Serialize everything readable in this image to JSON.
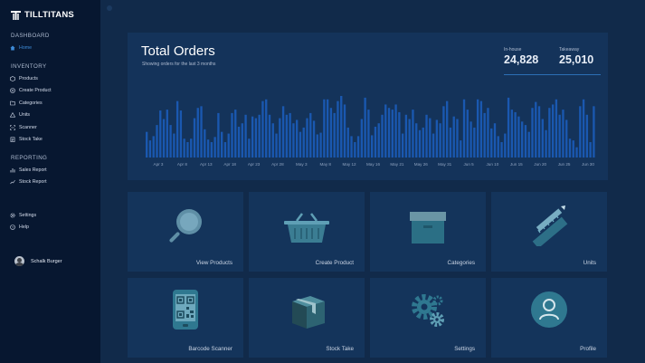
{
  "brand": {
    "name": "TILLTITANS"
  },
  "sidebar": {
    "dashboard_heading": "DASHBOARD",
    "home": "Home",
    "inventory_heading": "INVENTORY",
    "inventory_items": [
      {
        "label": "Products",
        "icon": "box-icon"
      },
      {
        "label": "Create Product",
        "icon": "plus-circle-icon"
      },
      {
        "label": "Categories",
        "icon": "folder-icon"
      },
      {
        "label": "Units",
        "icon": "triangle-ruler-icon"
      },
      {
        "label": "Scanner",
        "icon": "scan-icon"
      },
      {
        "label": "Stock Take",
        "icon": "clipboard-icon"
      }
    ],
    "reporting_heading": "REPORTING",
    "reporting_items": [
      {
        "label": "Sales Report",
        "icon": "bar-chart-icon"
      },
      {
        "label": "Stock Report",
        "icon": "trend-icon"
      }
    ],
    "settings": "Settings",
    "help": "Help",
    "user_name": "Schalk Burger"
  },
  "orders": {
    "title": "Total Orders",
    "subtitle": "Showing orders for the last 3 months",
    "in_house_label": "In-house",
    "in_house_value": "24,828",
    "takeaway_label": "Takeaway",
    "takeaway_value": "25,010"
  },
  "chart_data": {
    "type": "bar",
    "x_tick_labels": [
      "Apr 3",
      "Apr 8",
      "Apr 13",
      "Apr 18",
      "Apr 23",
      "Apr 28",
      "May 3",
      "May 8",
      "May 12",
      "May 16",
      "May 21",
      "May 26",
      "May 31",
      "Jun 5",
      "Jun 10",
      "Jun 15",
      "Jun 20",
      "Jun 25",
      "Jun 30"
    ],
    "values": [
      30,
      20,
      25,
      38,
      55,
      45,
      56,
      38,
      28,
      66,
      55,
      22,
      18,
      22,
      46,
      58,
      60,
      33,
      21,
      18,
      24,
      52,
      30,
      18,
      28,
      52,
      56,
      36,
      40,
      50,
      22,
      48,
      46,
      50,
      66,
      68,
      50,
      40,
      28,
      46,
      60,
      50,
      52,
      40,
      44,
      30,
      35,
      46,
      52,
      43,
      27,
      29,
      68,
      68,
      58,
      52,
      66,
      72,
      62,
      35,
      25,
      18,
      25,
      45,
      70,
      56,
      26,
      36,
      40,
      50,
      62,
      58,
      56,
      62,
      53,
      28,
      50,
      45,
      56,
      40,
      32,
      35,
      50,
      46,
      28,
      44,
      40,
      60,
      66,
      35,
      48,
      45,
      20,
      68,
      56,
      42,
      35,
      68,
      66,
      52,
      58,
      34,
      40,
      25,
      18,
      28,
      70,
      56,
      53,
      48,
      42,
      38,
      30,
      58,
      65,
      60,
      45,
      32,
      58,
      62,
      68,
      50,
      56,
      44,
      22,
      20,
      12,
      60,
      68,
      50,
      18,
      60
    ],
    "series_color": "#1a58b0",
    "grid": false
  },
  "cards": [
    {
      "label": "View Products",
      "icon": "magnifier-icon"
    },
    {
      "label": "Create Product",
      "icon": "basket-icon"
    },
    {
      "label": "Categories",
      "icon": "storage-box-icon"
    },
    {
      "label": "Units",
      "icon": "pencil-ruler-icon"
    },
    {
      "label": "Barcode Scanner",
      "icon": "phone-qr-icon"
    },
    {
      "label": "Stock Take",
      "icon": "package-icon"
    },
    {
      "label": "Settings",
      "icon": "gears-icon"
    },
    {
      "label": "Profile",
      "icon": "user-circle-icon"
    }
  ],
  "colors": {
    "sidebar_bg": "#071730",
    "page_bg": "#112a4a",
    "card_bg": "#14345b",
    "accent": "#3e8bd8",
    "icon_teal": "#2e7990"
  }
}
